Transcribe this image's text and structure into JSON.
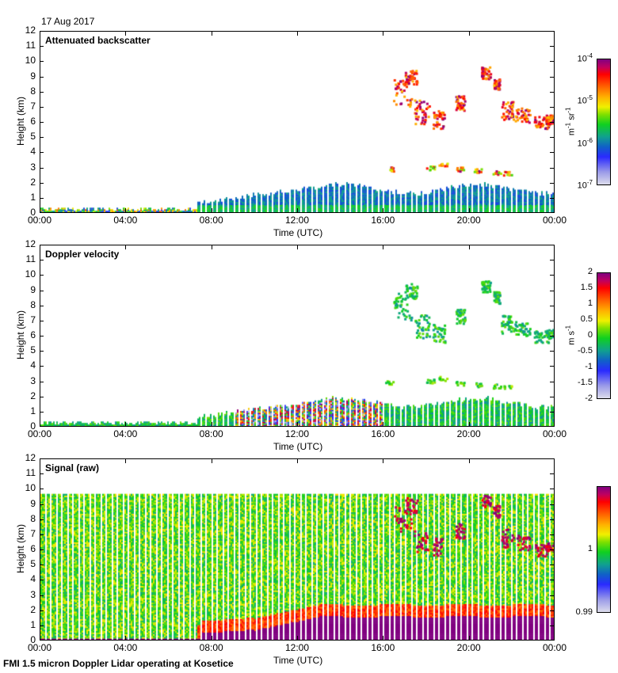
{
  "header": {
    "date": "17 Aug 2017"
  },
  "footer": {
    "caption": "FMI 1.5 micron Doppler Lidar operating at Kosetice"
  },
  "chart_data": [
    {
      "type": "heatmap",
      "title": "Attenuated backscatter",
      "xlabel": "Time (UTC)",
      "ylabel": "Height (km)",
      "xlim": [
        "00:00",
        "24:00"
      ],
      "ylim": [
        0,
        12
      ],
      "xticks": [
        "00:00",
        "04:00",
        "08:00",
        "12:00",
        "16:00",
        "20:00",
        "00:00"
      ],
      "yticks": [
        "0",
        "1",
        "2",
        "3",
        "4",
        "5",
        "6",
        "7",
        "8",
        "9",
        "10",
        "11",
        "12"
      ],
      "colorbar": {
        "unit": "m-1 sr-1",
        "scale": "log",
        "range": [
          1e-07,
          0.0001
        ],
        "ticks": [
          "10-7",
          "10-6",
          "10-5",
          "10-4"
        ]
      },
      "features": [
        {
          "name": "boundary layer",
          "time_range_h": [
            7.3,
            24
          ],
          "top_km_range": [
            0.8,
            1.8
          ],
          "typical_level": "1e-6"
        },
        {
          "name": "night surface layer",
          "time_range_h": [
            0,
            7.3
          ],
          "top_km": 0.2
        },
        {
          "name": "upper cloud",
          "time_range_h": [
            16.9,
            24
          ],
          "height_km_range": [
            5.5,
            9.5
          ],
          "typical_level": "1e-5 to 1e-4"
        },
        {
          "name": "mid cloud",
          "time_range_h": [
            16.2,
            22
          ],
          "height_km_range": [
            2.5,
            3.5
          ]
        }
      ]
    },
    {
      "type": "heatmap",
      "title": "Doppler velocity",
      "xlabel": "Time (UTC)",
      "ylabel": "Height (km)",
      "xlim": [
        "00:00",
        "24:00"
      ],
      "ylim": [
        0,
        12
      ],
      "xticks": [
        "00:00",
        "04:00",
        "08:00",
        "12:00",
        "16:00",
        "20:00",
        "00:00"
      ],
      "yticks": [
        "0",
        "1",
        "2",
        "3",
        "4",
        "5",
        "6",
        "7",
        "8",
        "9",
        "10",
        "11",
        "12"
      ],
      "colorbar": {
        "unit": "m s-1",
        "range": [
          -2,
          2
        ],
        "ticks": [
          "2",
          "1.5",
          "1",
          "0.5",
          "0",
          "-0.5",
          "-1",
          "-1.5",
          "-2"
        ]
      },
      "features": [
        {
          "name": "convective boundary layer",
          "time_range_h": [
            9,
            16
          ],
          "velocity_range": [
            -2,
            2
          ]
        },
        {
          "name": "clouds",
          "time_range_h": [
            16.9,
            24
          ],
          "velocity_range": [
            -1,
            0.5
          ]
        }
      ]
    },
    {
      "type": "heatmap",
      "title": "Signal (raw)",
      "xlabel": "Time (UTC)",
      "ylabel": "Height (km)",
      "xlim": [
        "00:00",
        "24:00"
      ],
      "ylim": [
        0,
        12
      ],
      "xticks": [
        "00:00",
        "04:00",
        "08:00",
        "12:00",
        "16:00",
        "20:00",
        "00:00"
      ],
      "yticks": [
        "0",
        "1",
        "2",
        "3",
        "4",
        "5",
        "6",
        "7",
        "8",
        "9",
        "10",
        "11",
        "12"
      ],
      "colorbar": {
        "range": [
          0.99,
          1.01
        ],
        "ticks": [
          "1",
          "0.99"
        ]
      },
      "features": [
        {
          "name": "data top",
          "height_km": 9.6
        },
        {
          "name": "high signal layer",
          "time_range_h": [
            7.5,
            24
          ],
          "top_km_range": [
            0.3,
            1.6
          ]
        }
      ]
    }
  ]
}
